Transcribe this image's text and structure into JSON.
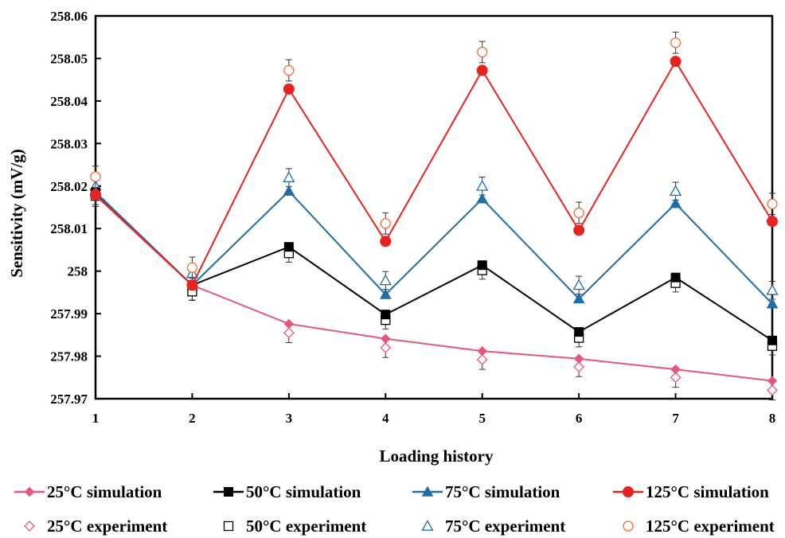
{
  "chart_data": {
    "type": "line",
    "title": "",
    "xlabel": "Loading history",
    "ylabel": "Sensitivity (mV/g)",
    "x": [
      1,
      2,
      3,
      4,
      5,
      6,
      7,
      8
    ],
    "xlim": [
      1,
      8
    ],
    "ylim": [
      257.97,
      258.06
    ],
    "yticks": [
      257.97,
      257.98,
      257.99,
      258,
      258.01,
      258.02,
      258.03,
      258.04,
      258.05,
      258.06
    ],
    "ytick_labels": [
      "257.97",
      "257.98",
      "257.99",
      "258",
      "258.01",
      "258.02",
      "258.03",
      "258.04",
      "258.05",
      "258.06"
    ],
    "xtick_labels": [
      "1",
      "2",
      "3",
      "4",
      "5",
      "6",
      "7",
      "8"
    ],
    "grid": false,
    "legend_position": "bottom",
    "series": [
      {
        "name": "25°C simulation",
        "kind": "simulation",
        "color": "#e8577a",
        "marker": "diamond-filled",
        "values": [
          258.0178,
          257.9967,
          257.9876,
          257.9841,
          257.9812,
          257.9794,
          257.9769,
          257.9742
        ]
      },
      {
        "name": "50°C simulation",
        "kind": "simulation",
        "color": "#000000",
        "marker": "square-filled",
        "values": [
          258.0185,
          257.9967,
          258.0057,
          257.9898,
          258.0014,
          257.9857,
          257.9985,
          257.9837
        ]
      },
      {
        "name": "75°C simulation",
        "kind": "simulation",
        "color": "#1f6ea6",
        "marker": "triangle-filled",
        "values": [
          258.0186,
          257.9967,
          258.0188,
          257.9945,
          258.017,
          257.9935,
          258.0159,
          257.9923
        ]
      },
      {
        "name": "125°C simulation",
        "kind": "simulation",
        "color": "#e8231f",
        "marker": "circle-filled",
        "values": [
          258.018,
          257.9967,
          258.0428,
          258.007,
          258.0472,
          258.0096,
          258.0493,
          258.0117
        ]
      },
      {
        "name": "25°C experiment",
        "kind": "experiment",
        "color": "#e8577a",
        "marker": "diamond-open",
        "values": [
          258.0175,
          257.9955,
          257.9855,
          257.982,
          257.9792,
          257.9775,
          257.975,
          257.972
        ],
        "error": 0.0023
      },
      {
        "name": "50°C experiment",
        "kind": "experiment",
        "color": "#000000",
        "marker": "square-open",
        "values": [
          258.0177,
          257.9952,
          258.0042,
          257.9885,
          258.0002,
          257.9843,
          257.9972,
          257.9824
        ],
        "error": 0.0021
      },
      {
        "name": "75°C experiment",
        "kind": "experiment",
        "color": "#1f6ea6",
        "marker": "triangle-open",
        "values": [
          258.02,
          257.9995,
          258.022,
          257.9978,
          258.02,
          257.9967,
          258.0188,
          257.9955
        ],
        "error": 0.0021
      },
      {
        "name": "125°C experiment",
        "kind": "experiment",
        "color": "#e8703a",
        "marker": "circle-open",
        "values": [
          258.0222,
          258.0008,
          258.0472,
          258.0112,
          258.0515,
          258.0137,
          258.0537,
          258.0158
        ],
        "error": 0.0025
      }
    ]
  }
}
